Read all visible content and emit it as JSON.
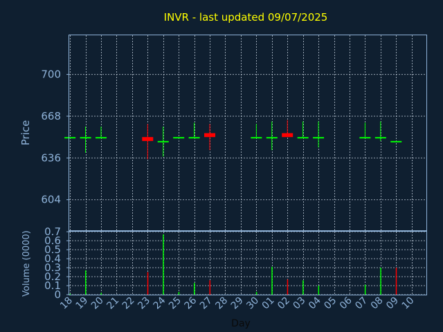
{
  "chart_data": [
    {
      "type": "candlestick",
      "title": "INVR - last updated 09/07/2025",
      "ylabel": "Price",
      "xlabel": "",
      "ylim": [
        580,
        730
      ],
      "yticks": [
        604,
        636,
        668,
        700
      ],
      "x": [
        "18",
        "19",
        "20",
        "21",
        "22",
        "23",
        "24",
        "25",
        "26",
        "27",
        "28",
        "29",
        "30",
        "01",
        "02",
        "03",
        "04",
        "05",
        "06",
        "07",
        "08",
        "09",
        "10"
      ],
      "grid": true,
      "candles": [
        {
          "x": "18",
          "open": 652,
          "high": 652,
          "low": 652,
          "close": 652
        },
        {
          "x": "19",
          "open": 652,
          "high": 660,
          "low": 640,
          "close": 652
        },
        {
          "x": "20",
          "open": 652,
          "high": 660,
          "low": 652,
          "close": 652
        },
        {
          "x": "23",
          "open": 652,
          "high": 662,
          "low": 635,
          "close": 649
        },
        {
          "x": "24",
          "open": 649,
          "high": 660,
          "low": 637,
          "close": 649
        },
        {
          "x": "25",
          "open": 652,
          "high": 652,
          "low": 652,
          "close": 652
        },
        {
          "x": "26",
          "open": 652,
          "high": 663,
          "low": 652,
          "close": 652
        },
        {
          "x": "27",
          "open": 655,
          "high": 662,
          "low": 642,
          "close": 652
        },
        {
          "x": "30",
          "open": 652,
          "high": 662,
          "low": 652,
          "close": 652
        },
        {
          "x": "01",
          "open": 652,
          "high": 664,
          "low": 642,
          "close": 652
        },
        {
          "x": "02",
          "open": 655,
          "high": 665,
          "low": 652,
          "close": 652
        },
        {
          "x": "03",
          "open": 652,
          "high": 664,
          "low": 652,
          "close": 652
        },
        {
          "x": "04",
          "open": 652,
          "high": 664,
          "low": 644,
          "close": 652
        },
        {
          "x": "07",
          "open": 652,
          "high": 663,
          "low": 652,
          "close": 652
        },
        {
          "x": "08",
          "open": 652,
          "high": 664,
          "low": 649,
          "close": 652
        },
        {
          "x": "09",
          "open": 649,
          "high": 649,
          "low": 649,
          "close": 649
        }
      ],
      "up_color": "#00ff00",
      "down_color": "#ff0000"
    },
    {
      "type": "bar",
      "ylabel": "Volume (0000)",
      "xlabel": "Day",
      "ylim": [
        0,
        0.7
      ],
      "yticks": [
        0,
        0.1,
        0.2,
        0.3,
        0.4,
        0.5,
        0.6,
        0.7
      ],
      "ytick_labels": [
        "0",
        "0.1",
        "0.2",
        "0.3",
        "0.4",
        "0.5",
        "0.6",
        "0.7"
      ],
      "x": [
        "18",
        "19",
        "20",
        "21",
        "22",
        "23",
        "24",
        "25",
        "26",
        "27",
        "28",
        "29",
        "30",
        "01",
        "02",
        "03",
        "04",
        "05",
        "06",
        "07",
        "08",
        "09",
        "10"
      ],
      "bars": [
        {
          "x": "18",
          "value": 0.01,
          "color": "#00ff00"
        },
        {
          "x": "19",
          "value": 0.27,
          "color": "#00ff00"
        },
        {
          "x": "20",
          "value": 0.02,
          "color": "#00ff00"
        },
        {
          "x": "23",
          "value": 0.25,
          "color": "#ff0000"
        },
        {
          "x": "24",
          "value": 0.67,
          "color": "#00ff00"
        },
        {
          "x": "25",
          "value": 0.03,
          "color": "#00ff00"
        },
        {
          "x": "26",
          "value": 0.13,
          "color": "#00ff00"
        },
        {
          "x": "27",
          "value": 0.16,
          "color": "#ff0000"
        },
        {
          "x": "30",
          "value": 0.03,
          "color": "#00ff00"
        },
        {
          "x": "01",
          "value": 0.31,
          "color": "#00ff00"
        },
        {
          "x": "02",
          "value": 0.17,
          "color": "#ff0000"
        },
        {
          "x": "03",
          "value": 0.16,
          "color": "#00ff00"
        },
        {
          "x": "04",
          "value": 0.1,
          "color": "#00ff00"
        },
        {
          "x": "07",
          "value": 0.11,
          "color": "#00ff00"
        },
        {
          "x": "08",
          "value": 0.3,
          "color": "#00ff00"
        },
        {
          "x": "09",
          "value": 0.3,
          "color": "#ff0000"
        }
      ]
    }
  ]
}
